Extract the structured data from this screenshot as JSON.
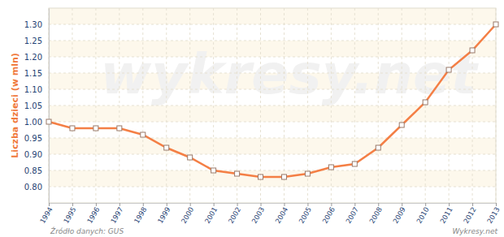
{
  "chart_data": {
    "type": "line",
    "y_label": "Liczba dzieci (w mln)",
    "annotations": [
      "Źródło danych: GUS",
      "Wykresy.net",
      "wykresy.net"
    ],
    "x": [
      1994,
      1995,
      1996,
      1997,
      1998,
      1999,
      2000,
      2001,
      2002,
      2003,
      2004,
      2005,
      2006,
      2007,
      2008,
      2009,
      2010,
      2011,
      2012,
      2013
    ],
    "values": [
      1.0,
      0.98,
      0.98,
      0.98,
      0.96,
      0.92,
      0.89,
      0.85,
      0.84,
      0.83,
      0.83,
      0.84,
      0.86,
      0.87,
      0.92,
      0.99,
      1.06,
      1.16,
      1.22,
      1.3
    ],
    "color": "#f47f45",
    "marker": "square",
    "line_style": "solid",
    "grid": true,
    "xlim": [
      1994,
      2013
    ],
    "xticks": [
      1994,
      1995,
      1996,
      1997,
      1998,
      1999,
      2000,
      2001,
      2002,
      2003,
      2004,
      2005,
      2006,
      2007,
      2008,
      2009,
      2010,
      2011,
      2012,
      2013
    ],
    "ylim": [
      0.75,
      1.35
    ],
    "yticks": [
      {
        "value": 0.8,
        "label": "0.80"
      },
      {
        "value": 0.85,
        "label": "0.85"
      },
      {
        "value": 0.9,
        "label": "0.90"
      },
      {
        "value": 0.95,
        "label": "0.95"
      },
      {
        "value": 1.0,
        "label": "1.00"
      },
      {
        "value": 1.05,
        "label": "1.05"
      },
      {
        "value": 1.1,
        "label": "1.10"
      },
      {
        "value": 1.15,
        "label": "1.15"
      },
      {
        "value": 1.2,
        "label": "1.20"
      },
      {
        "value": 1.25,
        "label": "1.25"
      },
      {
        "value": 1.3,
        "label": "1.30"
      }
    ]
  }
}
